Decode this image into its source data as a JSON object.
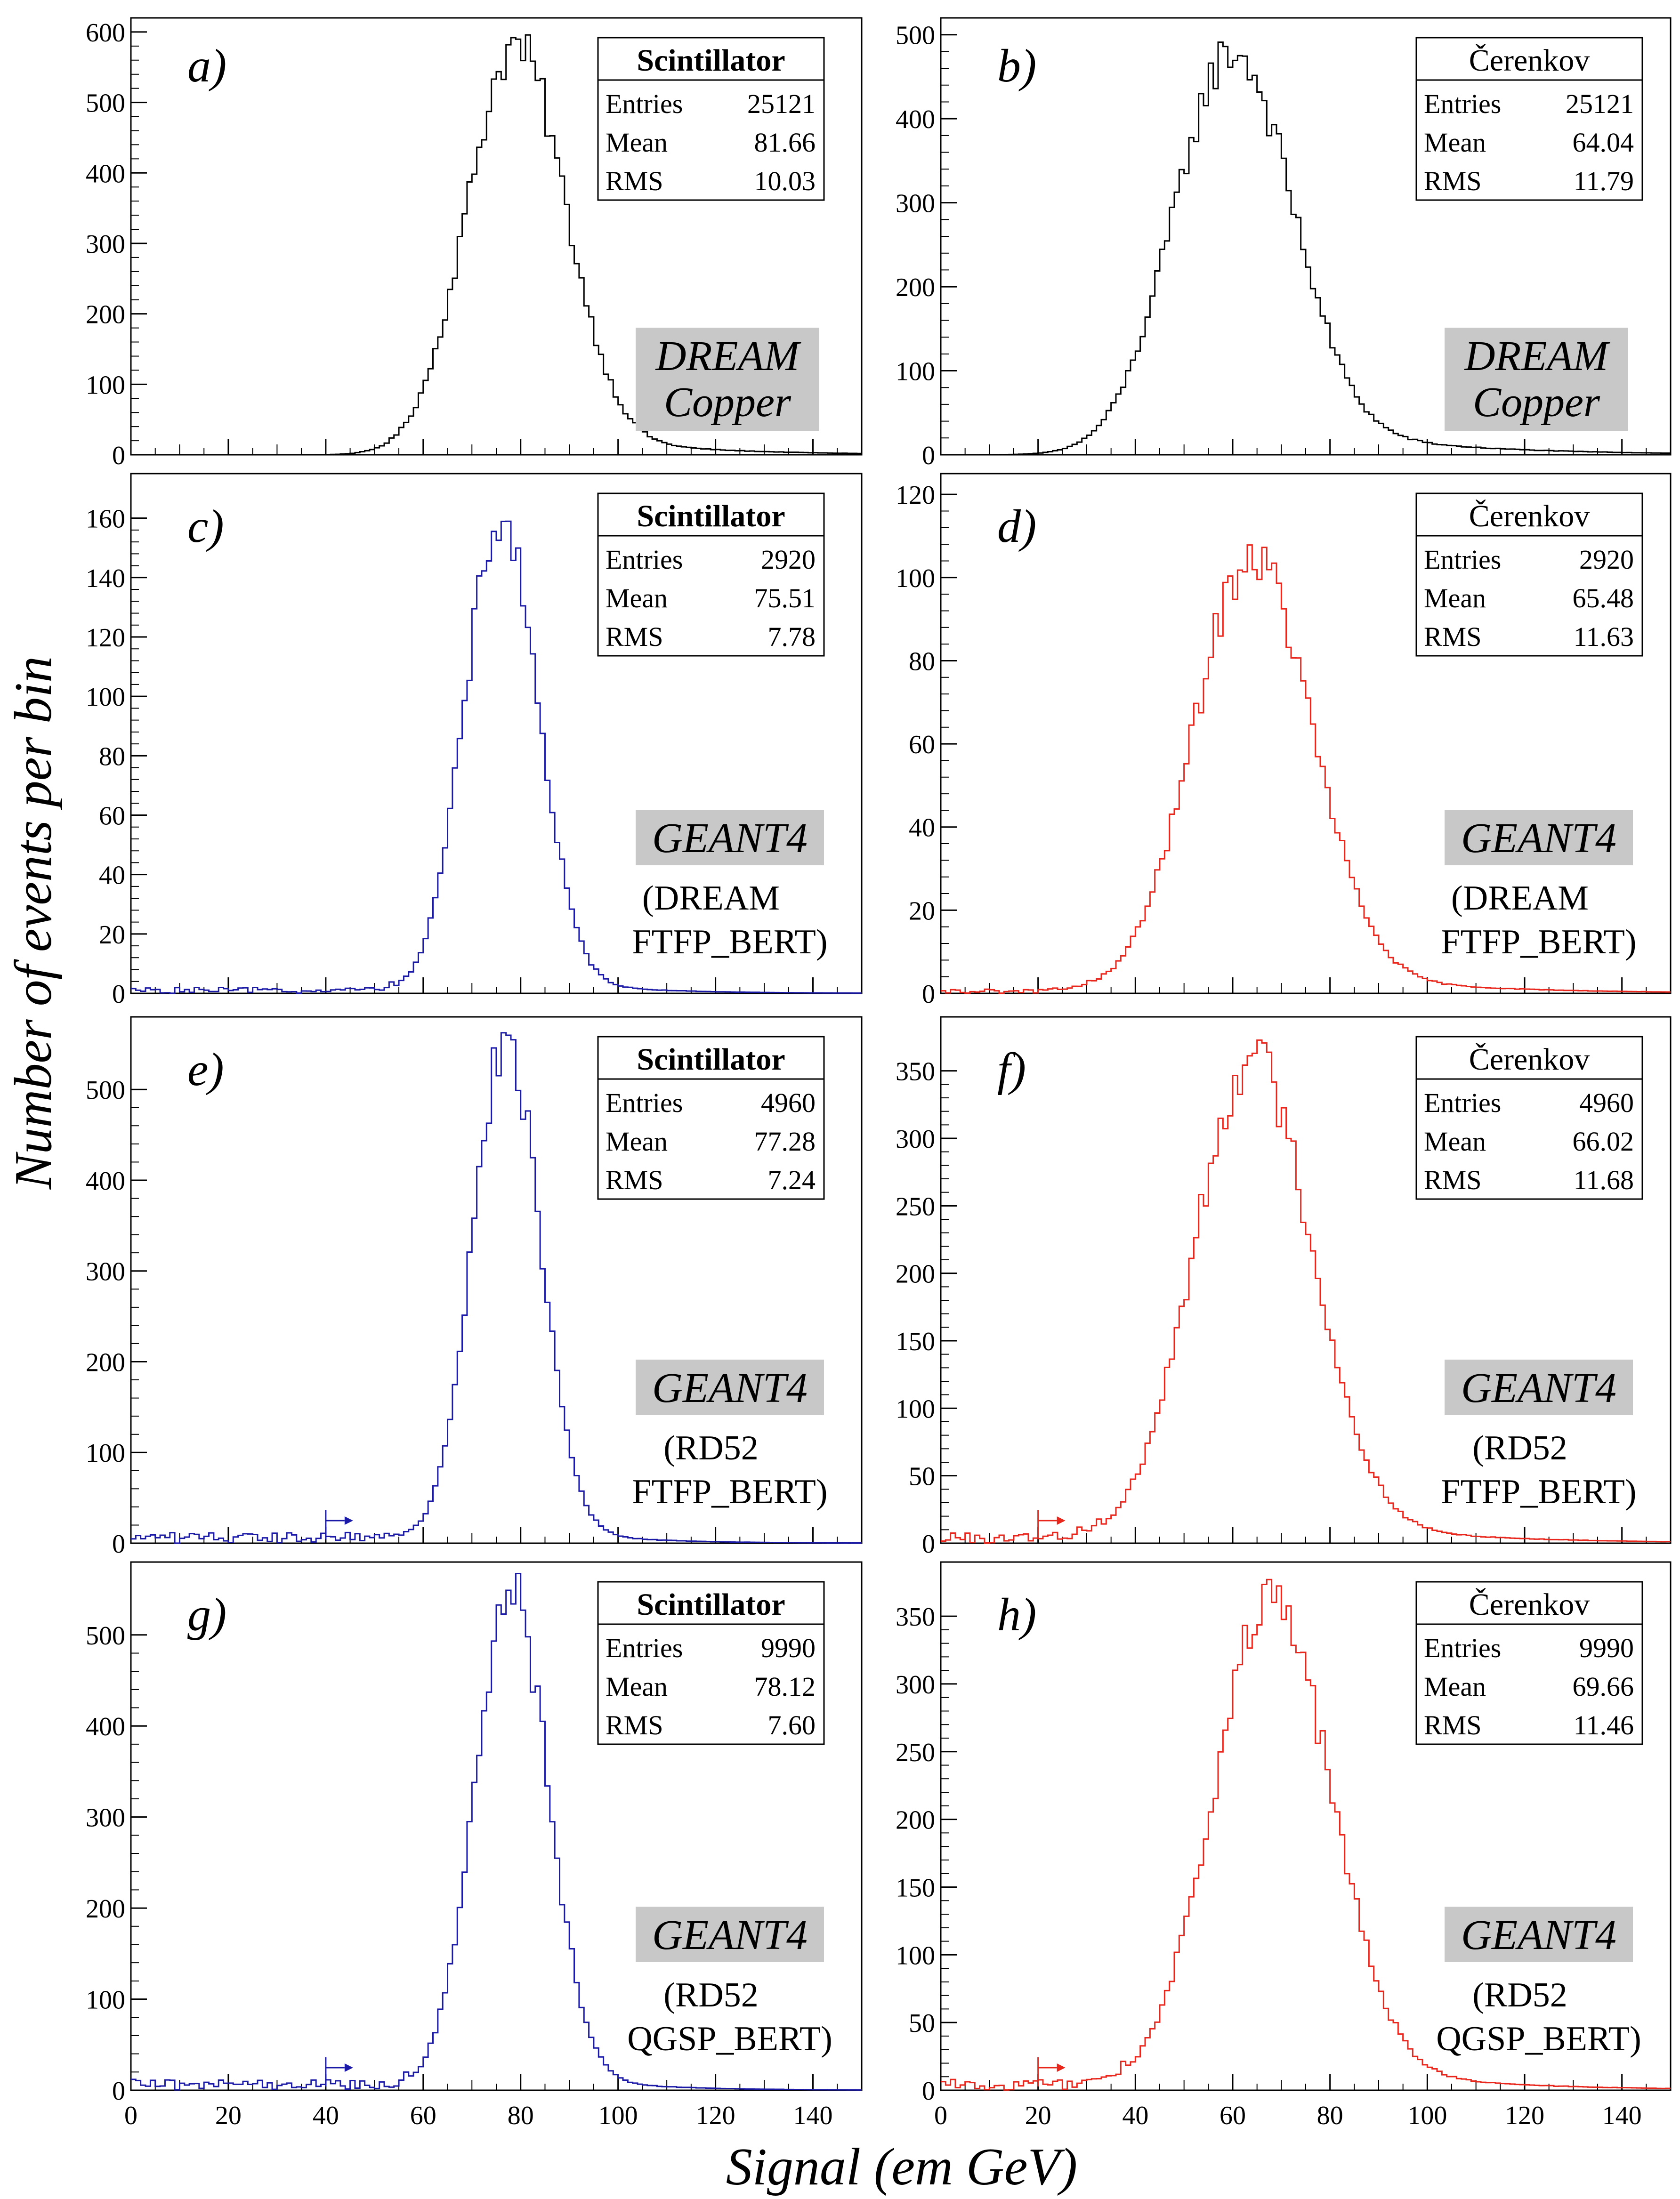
{
  "figure": {
    "y_axis_label": "Number of events per bin",
    "x_axis_label": "Signal (em GeV)"
  },
  "colors": {
    "black": "#000000",
    "blue": "#1a1aa6",
    "red": "#e8261c",
    "label_bg": "#c8c8c8"
  },
  "chart_data": [
    {
      "id": "a",
      "type": "histogram",
      "panel_label": "a)",
      "color": "black",
      "xlim": [
        0,
        150
      ],
      "ylim": [
        0,
        620
      ],
      "yticks": [
        0,
        100,
        200,
        300,
        400,
        500,
        600
      ],
      "stats": {
        "title": "Scintillator",
        "rows": [
          [
            "Entries",
            "25121"
          ],
          [
            "Mean",
            "81.66"
          ],
          [
            "RMS",
            "10.03"
          ]
        ]
      },
      "label_lines": [
        "DREAM",
        "Copper"
      ],
      "label_shaded": true,
      "mean": 79,
      "sigma": 10,
      "peak": 580,
      "tail": 0.08,
      "noise_level": 0,
      "threshold_arrow": null
    },
    {
      "id": "b",
      "type": "histogram",
      "panel_label": "b)",
      "color": "black",
      "xlim": [
        0,
        150
      ],
      "ylim": [
        0,
        520
      ],
      "yticks": [
        0,
        100,
        200,
        300,
        400,
        500
      ],
      "stats": {
        "title": "Čerenkov",
        "rows": [
          [
            "Entries",
            "25121"
          ],
          [
            "Mean",
            "64.04"
          ],
          [
            "RMS",
            "11.79"
          ]
        ]
      },
      "label_lines": [
        "DREAM",
        "Copper"
      ],
      "label_shaded": true,
      "mean": 60,
      "sigma": 12,
      "peak": 480,
      "tail": 0.12,
      "noise_level": 0,
      "threshold_arrow": null
    },
    {
      "id": "c",
      "type": "histogram",
      "panel_label": "c)",
      "color": "blue",
      "xlim": [
        0,
        150
      ],
      "ylim": [
        0,
        175
      ],
      "yticks": [
        0,
        20,
        40,
        60,
        80,
        100,
        120,
        140,
        160
      ],
      "stats": {
        "title": "Scintillator",
        "rows": [
          [
            "Entries",
            "2920"
          ],
          [
            "Mean",
            "75.51"
          ],
          [
            "RMS",
            "7.78"
          ]
        ]
      },
      "label_lines": [
        "GEANT4",
        "(DREAM",
        "FTFP_BERT)"
      ],
      "label_shaded": true,
      "mean": 76,
      "sigma": 7.5,
      "peak": 160,
      "tail": 0.05,
      "noise_level": 1,
      "threshold_arrow": null
    },
    {
      "id": "d",
      "type": "histogram",
      "panel_label": "d)",
      "color": "red",
      "xlim": [
        0,
        150
      ],
      "ylim": [
        0,
        125
      ],
      "yticks": [
        0,
        20,
        40,
        60,
        80,
        100,
        120
      ],
      "stats": {
        "title": "Čerenkov",
        "rows": [
          [
            "Entries",
            "2920"
          ],
          [
            "Mean",
            "65.48"
          ],
          [
            "RMS",
            "11.63"
          ]
        ]
      },
      "label_lines": [
        "GEANT4",
        "(DREAM",
        "FTFP_BERT)"
      ],
      "label_shaded": true,
      "mean": 64,
      "sigma": 12,
      "peak": 105,
      "tail": 0.08,
      "noise_level": 0.5,
      "threshold_arrow": null
    },
    {
      "id": "e",
      "type": "histogram",
      "panel_label": "e)",
      "color": "blue",
      "xlim": [
        0,
        150
      ],
      "ylim": [
        0,
        580
      ],
      "yticks": [
        0,
        100,
        200,
        300,
        400,
        500
      ],
      "stats": {
        "title": "Scintillator",
        "rows": [
          [
            "Entries",
            "4960"
          ],
          [
            "Mean",
            "77.28"
          ],
          [
            "RMS",
            "7.24"
          ]
        ]
      },
      "label_lines": [
        "GEANT4",
        "(RD52",
        "FTFP_BERT)"
      ],
      "label_shaded": true,
      "mean": 77,
      "sigma": 7,
      "peak": 550,
      "tail": 0.05,
      "noise_level": 6,
      "threshold_arrow": 40
    },
    {
      "id": "f",
      "type": "histogram",
      "panel_label": "f)",
      "color": "red",
      "xlim": [
        0,
        150
      ],
      "ylim": [
        0,
        390
      ],
      "yticks": [
        0,
        50,
        100,
        150,
        200,
        250,
        300,
        350
      ],
      "stats": {
        "title": "Čerenkov",
        "rows": [
          [
            "Entries",
            "4960"
          ],
          [
            "Mean",
            "66.02"
          ],
          [
            "RMS",
            "11.68"
          ]
        ]
      },
      "label_lines": [
        "GEANT4",
        "(RD52",
        "FTFP_BERT)"
      ],
      "label_shaded": true,
      "mean": 64,
      "sigma": 12,
      "peak": 360,
      "tail": 0.08,
      "noise_level": 4,
      "threshold_arrow": 20
    },
    {
      "id": "g",
      "type": "histogram",
      "panel_label": "g)",
      "color": "blue",
      "xlim": [
        0,
        150
      ],
      "ylim": [
        0,
        580
      ],
      "yticks": [
        0,
        100,
        200,
        300,
        400,
        500
      ],
      "stats": {
        "title": "Scintillator",
        "rows": [
          [
            "Entries",
            "9990"
          ],
          [
            "Mean",
            "78.12"
          ],
          [
            "RMS",
            "7.60"
          ]
        ]
      },
      "label_lines": [
        "GEANT4",
        "(RD52",
        "QGSP_BERT)"
      ],
      "label_shaded": true,
      "mean": 78,
      "sigma": 7.5,
      "peak": 550,
      "tail": 0.05,
      "noise_level": 6,
      "threshold_arrow": 40
    },
    {
      "id": "h",
      "type": "histogram",
      "panel_label": "h)",
      "color": "red",
      "xlim": [
        0,
        150
      ],
      "ylim": [
        0,
        390
      ],
      "yticks": [
        0,
        50,
        100,
        150,
        200,
        250,
        300,
        350
      ],
      "stats": {
        "title": "Čerenkov",
        "rows": [
          [
            "Entries",
            "9990"
          ],
          [
            "Mean",
            "69.66"
          ],
          [
            "RMS",
            "11.46"
          ]
        ]
      },
      "label_lines": [
        "GEANT4",
        "(RD52",
        "QGSP_BERT)"
      ],
      "label_shaded": true,
      "mean": 68,
      "sigma": 12,
      "peak": 360,
      "tail": 0.08,
      "noise_level": 4,
      "threshold_arrow": 20
    }
  ],
  "x_ticks": [
    0,
    20,
    40,
    60,
    80,
    100,
    120,
    140
  ]
}
